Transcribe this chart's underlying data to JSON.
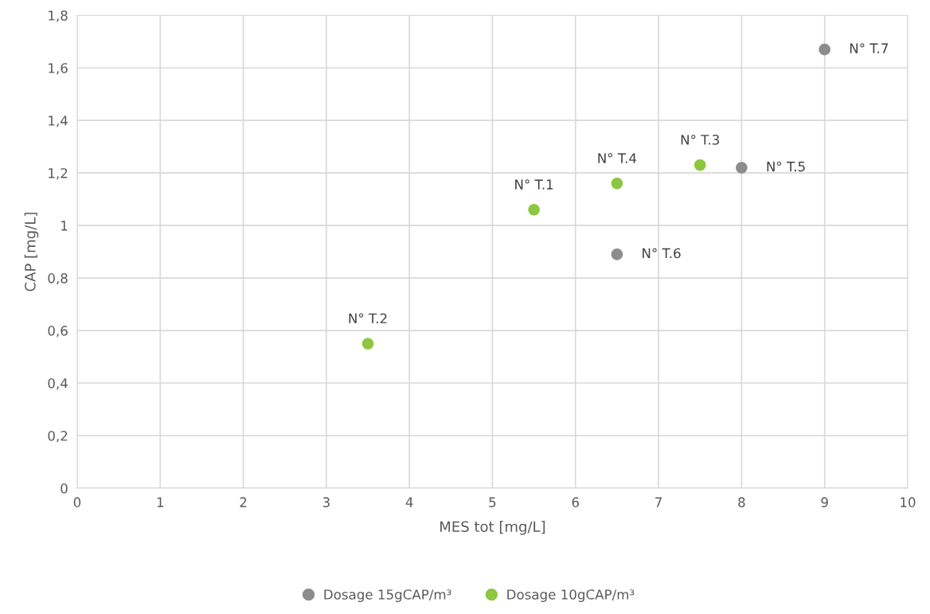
{
  "chart_data": {
    "type": "scatter",
    "xlabel": "MES tot [mg/L]",
    "ylabel": "CAP [mg/L]",
    "xlim": [
      0,
      10
    ],
    "xticks": [
      0,
      1,
      2,
      3,
      4,
      5,
      6,
      7,
      8,
      9,
      10
    ],
    "ylim": [
      0,
      1.8
    ],
    "yticks": [
      0,
      {
        "value": 0.2,
        "label": "0,2"
      },
      {
        "value": 0.4,
        "label": "0,4"
      },
      {
        "value": 0.6,
        "label": "0,6"
      },
      {
        "value": 0.8,
        "label": "0,8"
      },
      1,
      {
        "value": 1.2,
        "label": "1,2"
      },
      {
        "value": 1.4,
        "label": "1,4"
      },
      {
        "value": 1.6,
        "label": "1,6"
      },
      {
        "value": 1.8,
        "label": "1,8"
      }
    ],
    "grid": true,
    "legend": "bottom",
    "marker": "circle",
    "series": [
      {
        "name": "Dosage 15gCAP/m³",
        "color": "#8c8c8c",
        "x": [
          9,
          8,
          6.5
        ],
        "values": [
          1.67,
          1.22,
          0.89
        ]
      },
      {
        "name": "Dosage 10gCAP/m³",
        "color": "#8dc63f",
        "x": [
          5.5,
          3.5,
          7.5,
          6.5
        ],
        "values": [
          1.06,
          0.55,
          1.23,
          1.16
        ]
      }
    ],
    "annotations": [
      {
        "text": "N° T.7",
        "x": 9,
        "y": 1.67
      },
      {
        "text": "N° T.5",
        "x": 8,
        "y": 1.22
      },
      {
        "text": "N° T.6",
        "x": 6.5,
        "y": 0.89
      },
      {
        "text": "N° T.1",
        "x": 5.5,
        "y": 1.06
      },
      {
        "text": "N° T.2",
        "x": 3.5,
        "y": 0.55
      },
      {
        "text": "N° T.3",
        "x": 7.5,
        "y": 1.23
      },
      {
        "text": "N° T.4",
        "x": 6.5,
        "y": 1.16
      }
    ]
  }
}
